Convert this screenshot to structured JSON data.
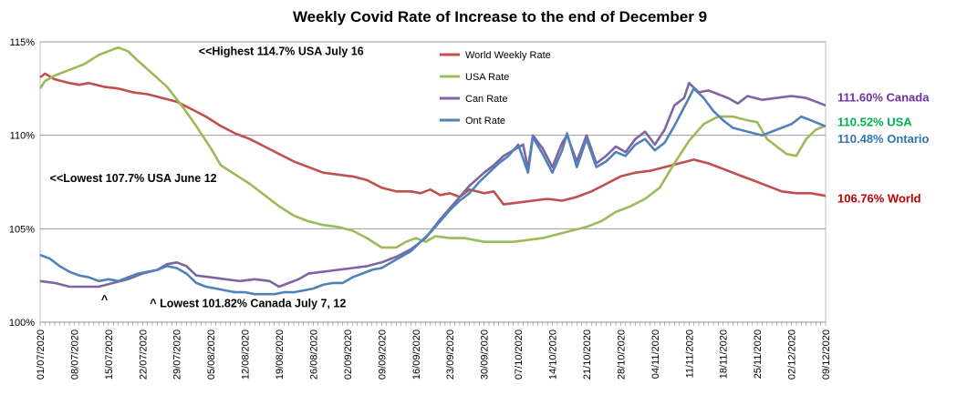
{
  "chart_data": {
    "type": "line",
    "title": "Weekly Covid Rate of Increase to the end of December 9",
    "xlabel": "",
    "ylabel": "",
    "ylim": [
      100,
      115
    ],
    "yticks": [
      "100%",
      "105%",
      "110%",
      "115%"
    ],
    "ytick_values": [
      100,
      105,
      110,
      115
    ],
    "x_tick_labels": [
      "01/07/2020",
      "08/07/2020",
      "15/07/2020",
      "22/07/2020",
      "29/07/2020",
      "05/08/2020",
      "12/08/2020",
      "19/08/2020",
      "26/08/2020",
      "02/09/2020",
      "09/09/2020",
      "16/09/2020",
      "23/09/2020",
      "30/09/2020",
      "07/10/2020",
      "14/10/2020",
      "21/10/2020",
      "28/10/2020",
      "04/11/2020",
      "11/11/2020",
      "18/11/2020",
      "25/11/2020",
      "02/12/2020",
      "09/12/2020"
    ],
    "x_range_days": [
      0,
      161
    ],
    "grid": "horizontal",
    "legend_position": "top-center",
    "series": [
      {
        "name": "World Weekly Rate",
        "color": "#C0504D",
        "points": [
          [
            0,
            113.1
          ],
          [
            1,
            113.3
          ],
          [
            3,
            113.0
          ],
          [
            6,
            112.8
          ],
          [
            8,
            112.7
          ],
          [
            10,
            112.8
          ],
          [
            13,
            112.6
          ],
          [
            16,
            112.5
          ],
          [
            19,
            112.3
          ],
          [
            22,
            112.2
          ],
          [
            25,
            112.0
          ],
          [
            28,
            111.8
          ],
          [
            31,
            111.4
          ],
          [
            34,
            111.0
          ],
          [
            37,
            110.5
          ],
          [
            40,
            110.1
          ],
          [
            43,
            109.8
          ],
          [
            46,
            109.4
          ],
          [
            49,
            109.0
          ],
          [
            52,
            108.6
          ],
          [
            55,
            108.3
          ],
          [
            58,
            108.0
          ],
          [
            61,
            107.9
          ],
          [
            64,
            107.8
          ],
          [
            67,
            107.6
          ],
          [
            70,
            107.2
          ],
          [
            73,
            107.0
          ],
          [
            76,
            107.0
          ],
          [
            78,
            106.9
          ],
          [
            80,
            107.1
          ],
          [
            82,
            106.8
          ],
          [
            84,
            106.9
          ],
          [
            86,
            106.7
          ],
          [
            88,
            107.1
          ],
          [
            91,
            106.9
          ],
          [
            93,
            107.0
          ],
          [
            95,
            106.3
          ],
          [
            98,
            106.4
          ],
          [
            101,
            106.5
          ],
          [
            104,
            106.6
          ],
          [
            107,
            106.5
          ],
          [
            110,
            106.7
          ],
          [
            113,
            107.0
          ],
          [
            116,
            107.4
          ],
          [
            119,
            107.8
          ],
          [
            122,
            108.0
          ],
          [
            125,
            108.1
          ],
          [
            128,
            108.3
          ],
          [
            131,
            108.5
          ],
          [
            134,
            108.7
          ],
          [
            137,
            108.5
          ],
          [
            140,
            108.2
          ],
          [
            143,
            107.9
          ],
          [
            146,
            107.6
          ],
          [
            149,
            107.3
          ],
          [
            152,
            107.0
          ],
          [
            155,
            106.9
          ],
          [
            158,
            106.9
          ],
          [
            161,
            106.76
          ]
        ]
      },
      {
        "name": "USA Rate",
        "color": "#9BBB59",
        "points": [
          [
            0,
            112.5
          ],
          [
            1,
            112.9
          ],
          [
            3,
            113.2
          ],
          [
            6,
            113.5
          ],
          [
            9,
            113.8
          ],
          [
            12,
            114.3
          ],
          [
            15,
            114.6
          ],
          [
            16,
            114.7
          ],
          [
            18,
            114.5
          ],
          [
            20,
            114.0
          ],
          [
            23,
            113.3
          ],
          [
            26,
            112.6
          ],
          [
            29,
            111.6
          ],
          [
            32,
            110.5
          ],
          [
            35,
            109.3
          ],
          [
            37,
            108.4
          ],
          [
            40,
            107.9
          ],
          [
            43,
            107.4
          ],
          [
            46,
            106.8
          ],
          [
            49,
            106.2
          ],
          [
            52,
            105.7
          ],
          [
            55,
            105.4
          ],
          [
            58,
            105.2
          ],
          [
            61,
            105.1
          ],
          [
            64,
            104.9
          ],
          [
            67,
            104.5
          ],
          [
            70,
            104.0
          ],
          [
            73,
            104.0
          ],
          [
            75,
            104.3
          ],
          [
            77,
            104.5
          ],
          [
            79,
            104.3
          ],
          [
            81,
            104.6
          ],
          [
            84,
            104.5
          ],
          [
            87,
            104.5
          ],
          [
            89,
            104.4
          ],
          [
            91,
            104.3
          ],
          [
            94,
            104.3
          ],
          [
            97,
            104.3
          ],
          [
            100,
            104.4
          ],
          [
            103,
            104.5
          ],
          [
            106,
            104.7
          ],
          [
            109,
            104.9
          ],
          [
            112,
            105.1
          ],
          [
            115,
            105.4
          ],
          [
            118,
            105.9
          ],
          [
            121,
            106.2
          ],
          [
            124,
            106.6
          ],
          [
            127,
            107.2
          ],
          [
            130,
            108.5
          ],
          [
            133,
            109.7
          ],
          [
            136,
            110.6
          ],
          [
            139,
            111.0
          ],
          [
            142,
            111.0
          ],
          [
            145,
            110.8
          ],
          [
            147,
            110.7
          ],
          [
            149,
            109.8
          ],
          [
            151,
            109.4
          ],
          [
            153,
            109.0
          ],
          [
            155,
            108.9
          ],
          [
            157,
            109.8
          ],
          [
            159,
            110.3
          ],
          [
            161,
            110.52
          ]
        ]
      },
      {
        "name": "Can Rate",
        "color": "#8064A2",
        "points": [
          [
            0,
            102.2
          ],
          [
            3,
            102.1
          ],
          [
            6,
            101.9
          ],
          [
            9,
            101.9
          ],
          [
            12,
            101.9
          ],
          [
            15,
            102.1
          ],
          [
            18,
            102.3
          ],
          [
            21,
            102.6
          ],
          [
            24,
            102.8
          ],
          [
            26,
            103.1
          ],
          [
            28,
            103.2
          ],
          [
            30,
            103.0
          ],
          [
            32,
            102.5
          ],
          [
            35,
            102.4
          ],
          [
            38,
            102.3
          ],
          [
            41,
            102.2
          ],
          [
            44,
            102.3
          ],
          [
            47,
            102.2
          ],
          [
            49,
            101.9
          ],
          [
            51,
            102.1
          ],
          [
            53,
            102.3
          ],
          [
            55,
            102.6
          ],
          [
            58,
            102.7
          ],
          [
            61,
            102.8
          ],
          [
            64,
            102.9
          ],
          [
            67,
            103.0
          ],
          [
            70,
            103.2
          ],
          [
            73,
            103.5
          ],
          [
            76,
            103.9
          ],
          [
            79,
            104.5
          ],
          [
            82,
            105.5
          ],
          [
            85,
            106.4
          ],
          [
            88,
            107.3
          ],
          [
            91,
            108.0
          ],
          [
            93,
            108.4
          ],
          [
            95,
            108.9
          ],
          [
            97,
            109.2
          ],
          [
            99,
            109.5
          ],
          [
            100,
            108.2
          ],
          [
            101,
            110.0
          ],
          [
            103,
            109.3
          ],
          [
            105,
            108.3
          ],
          [
            107,
            109.6
          ],
          [
            108,
            110.0
          ],
          [
            110,
            108.6
          ],
          [
            112,
            110.0
          ],
          [
            114,
            108.5
          ],
          [
            116,
            108.9
          ],
          [
            118,
            109.4
          ],
          [
            120,
            109.1
          ],
          [
            122,
            109.8
          ],
          [
            124,
            110.2
          ],
          [
            126,
            109.5
          ],
          [
            128,
            110.3
          ],
          [
            130,
            111.6
          ],
          [
            132,
            112.0
          ],
          [
            133,
            112.8
          ],
          [
            135,
            112.3
          ],
          [
            137,
            112.4
          ],
          [
            139,
            112.2
          ],
          [
            141,
            112.0
          ],
          [
            143,
            111.7
          ],
          [
            145,
            112.1
          ],
          [
            148,
            111.9
          ],
          [
            151,
            112.0
          ],
          [
            154,
            112.1
          ],
          [
            157,
            112.0
          ],
          [
            159,
            111.8
          ],
          [
            161,
            111.6
          ]
        ]
      },
      {
        "name": "Ont Rate",
        "color": "#4F81BD",
        "points": [
          [
            0,
            103.6
          ],
          [
            2,
            103.4
          ],
          [
            4,
            103.0
          ],
          [
            6,
            102.7
          ],
          [
            8,
            102.5
          ],
          [
            10,
            102.4
          ],
          [
            12,
            102.2
          ],
          [
            14,
            102.3
          ],
          [
            16,
            102.2
          ],
          [
            18,
            102.4
          ],
          [
            20,
            102.6
          ],
          [
            22,
            102.7
          ],
          [
            24,
            102.8
          ],
          [
            26,
            103.0
          ],
          [
            28,
            102.9
          ],
          [
            30,
            102.6
          ],
          [
            32,
            102.1
          ],
          [
            34,
            101.9
          ],
          [
            36,
            101.8
          ],
          [
            38,
            101.7
          ],
          [
            40,
            101.6
          ],
          [
            42,
            101.6
          ],
          [
            44,
            101.5
          ],
          [
            46,
            101.5
          ],
          [
            48,
            101.5
          ],
          [
            50,
            101.6
          ],
          [
            52,
            101.6
          ],
          [
            54,
            101.7
          ],
          [
            56,
            101.8
          ],
          [
            58,
            102.0
          ],
          [
            60,
            102.1
          ],
          [
            62,
            102.1
          ],
          [
            64,
            102.4
          ],
          [
            66,
            102.6
          ],
          [
            68,
            102.8
          ],
          [
            70,
            102.9
          ],
          [
            72,
            103.2
          ],
          [
            74,
            103.5
          ],
          [
            76,
            103.8
          ],
          [
            78,
            104.3
          ],
          [
            80,
            104.8
          ],
          [
            82,
            105.4
          ],
          [
            84,
            106.0
          ],
          [
            86,
            106.5
          ],
          [
            88,
            106.9
          ],
          [
            90,
            107.5
          ],
          [
            92,
            108.0
          ],
          [
            94,
            108.5
          ],
          [
            96,
            108.9
          ],
          [
            98,
            109.5
          ],
          [
            100,
            108.0
          ],
          [
            101,
            109.9
          ],
          [
            103,
            109.0
          ],
          [
            105,
            108.0
          ],
          [
            107,
            109.2
          ],
          [
            108,
            110.1
          ],
          [
            110,
            108.3
          ],
          [
            112,
            109.8
          ],
          [
            114,
            108.3
          ],
          [
            116,
            108.6
          ],
          [
            118,
            109.1
          ],
          [
            120,
            108.9
          ],
          [
            122,
            109.5
          ],
          [
            124,
            109.8
          ],
          [
            126,
            109.2
          ],
          [
            128,
            109.6
          ],
          [
            130,
            110.5
          ],
          [
            132,
            111.5
          ],
          [
            134,
            112.5
          ],
          [
            136,
            112.0
          ],
          [
            138,
            111.3
          ],
          [
            140,
            110.8
          ],
          [
            142,
            110.4
          ],
          [
            145,
            110.2
          ],
          [
            148,
            110.0
          ],
          [
            151,
            110.3
          ],
          [
            154,
            110.6
          ],
          [
            156,
            111.0
          ],
          [
            158,
            110.8
          ],
          [
            161,
            110.48
          ]
        ]
      }
    ],
    "annotations": [
      {
        "text": "<<Highest 114.7% USA July 16",
        "x_day": 31,
        "y": 114.5
      },
      {
        "text": "<<Lowest 107.7% USA June 12",
        "x_day": 0.5,
        "y": 107.7
      },
      {
        "text": "^",
        "x_day": 11,
        "y": 101.2
      },
      {
        "text": "^ Lowest 101.82% Canada July 7, 12",
        "x_day": 21,
        "y": 101.0
      }
    ],
    "end_labels": [
      {
        "text": "111.60% Canada",
        "color": "#7030A0",
        "y": 112.0
      },
      {
        "text": "110.52% USA",
        "color": "#00B050",
        "y": 110.7
      },
      {
        "text": "110.48% Ontario",
        "color": "#2E75B6",
        "y": 109.8
      },
      {
        "text": "106.76% World",
        "color": "#C00000",
        "y": 106.6
      }
    ]
  }
}
